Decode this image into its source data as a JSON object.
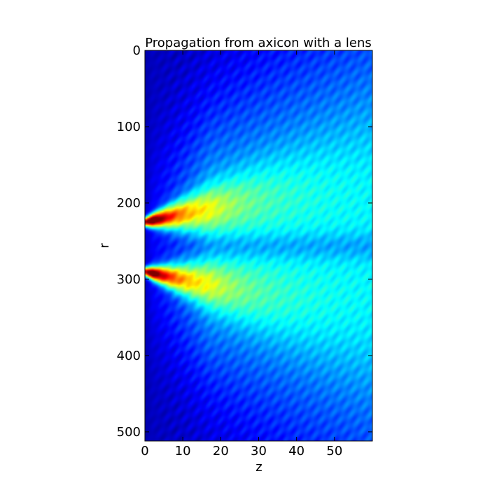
{
  "chart_data": {
    "type": "heatmap",
    "title": "Propagation from axicon with a lens",
    "xlabel": "z",
    "ylabel": "r",
    "xlim": [
      0,
      60
    ],
    "ylim": [
      512,
      0
    ],
    "x_ticks": [
      0,
      10,
      20,
      30,
      40,
      50
    ],
    "y_ticks": [
      0,
      100,
      200,
      300,
      400,
      500
    ],
    "x_tick_labels": [
      "0",
      "10",
      "20",
      "30",
      "40",
      "50"
    ],
    "y_tick_labels": [
      "0",
      "100",
      "200",
      "300",
      "400",
      "500"
    ],
    "colormap": "jet",
    "grid": false,
    "lobes": [
      {
        "r_start": 225,
        "z_start": 0,
        "r_spread_per_z": -1.05,
        "peak": 1.0
      },
      {
        "r_start": 290,
        "z_start": 0,
        "r_spread_per_z": 1.05,
        "peak": 0.95
      }
    ],
    "center_r": 257,
    "fringe_note": "diagonal interference fringes across background"
  }
}
